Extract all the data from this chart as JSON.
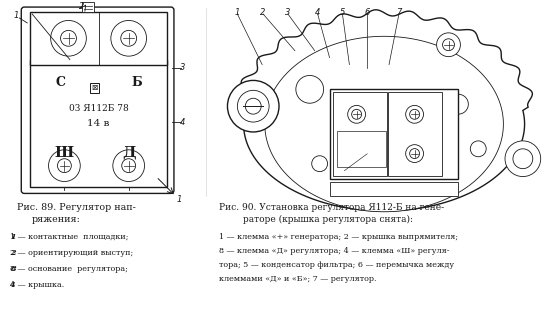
{
  "background_color": "#ffffff",
  "fig_width": 5.59,
  "fig_height": 3.21,
  "text_color": "#1a1a1a",
  "diagram_color": "#1a1a1a",
  "caption_left_title_line1": "Рис. 89. Регулятор нап-",
  "caption_left_title_line2": "ряжения:",
  "caption_left_items": [
    "1 — контактные  площадки;",
    "2 — ориентирующий выступ;",
    "8 — основание  регулятора;",
    "4 — крышка."
  ],
  "caption_right_title_line1": "Рис. 90. Установка регулятора Я112-Б на гене-",
  "caption_right_title_line2": "раторе (крышка регулятора снята):",
  "caption_right_items": [
    "1 — клемма «+» генератора; 2 — крышка выпрямителя;",
    "8 — клемма «Д» регулятора; 4 — клемма «Ш» регуля-",
    "тора; 5 — конденсатор фильтра; 6 — перемычка между",
    "клеммами «Д» и «Б»; 7 — регулятор."
  ]
}
